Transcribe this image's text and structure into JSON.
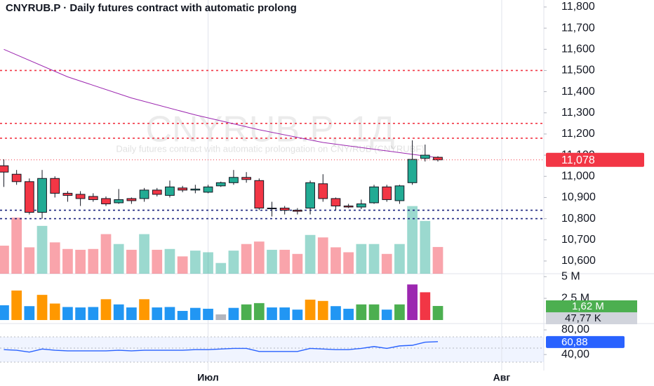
{
  "chart_data": {
    "type": "candlestick",
    "title": "CNYRUB.P · Daily futures contract with automatic prolong",
    "watermark": "CNYRUB.P, 1Д",
    "subtitle": "Daily futures contract with automatic prolongation on CNY/RUB (CNYRUBF)",
    "up_color": "#22ab94",
    "down_color": "#f23645",
    "open": [
      11050,
      11010,
      10975,
      10830,
      10990,
      10920,
      10915,
      10905,
      10895,
      10875,
      10895,
      10895,
      10935,
      10910,
      10945,
      10935,
      10925,
      10955,
      10970,
      10995,
      10980,
      10850,
      10850,
      10840,
      10850,
      10965,
      10895,
      10860,
      10855,
      10875,
      10950,
      10885,
      10970,
      11085,
      11090
    ],
    "high": [
      11080,
      11030,
      10990,
      11030,
      11000,
      10930,
      10930,
      10920,
      10905,
      10940,
      10900,
      10945,
      10945,
      10980,
      10955,
      10960,
      10960,
      10975,
      11030,
      11020,
      10990,
      10880,
      10860,
      10850,
      10980,
      11010,
      10900,
      10870,
      10890,
      10960,
      10960,
      10960,
      11170,
      11150,
      11095
    ],
    "low": [
      10950,
      10960,
      10820,
      10800,
      10900,
      10880,
      10860,
      10880,
      10860,
      10870,
      10870,
      10880,
      10905,
      10900,
      10925,
      10920,
      10920,
      10950,
      10960,
      10970,
      10840,
      10810,
      10820,
      10820,
      10820,
      10880,
      10840,
      10850,
      10845,
      10870,
      10880,
      10870,
      10960,
      11070,
      11070
    ],
    "close": [
      11020,
      10975,
      10830,
      10990,
      10920,
      10910,
      10895,
      10890,
      10870,
      10890,
      10885,
      10935,
      10915,
      10950,
      10935,
      10940,
      10950,
      10970,
      10995,
      10985,
      10850,
      10850,
      10840,
      10835,
      10970,
      10895,
      10860,
      10855,
      10870,
      10950,
      10890,
      10955,
      11080,
      11100,
      11078
    ],
    "last_price": {
      "value": 11078,
      "label": "11,078"
    },
    "ylim": [
      10540,
      11833
    ],
    "yticks": [
      {
        "value": 10600,
        "label": "10,600"
      },
      {
        "value": 10700,
        "label": "10,700"
      },
      {
        "value": 10800,
        "label": "10,800"
      },
      {
        "value": 10900,
        "label": "10,900"
      },
      {
        "value": 11000,
        "label": "11,000"
      },
      {
        "value": 11100,
        "label": "11,100"
      },
      {
        "value": 11200,
        "label": "11,200"
      },
      {
        "value": 11300,
        "label": "11,300"
      },
      {
        "value": 11400,
        "label": "11,400"
      },
      {
        "value": 11500,
        "label": "11,500"
      },
      {
        "value": 11600,
        "label": "11,600"
      },
      {
        "value": 11700,
        "label": "11,700"
      },
      {
        "value": 11800,
        "label": "11,800"
      }
    ],
    "xlim": [
      -0.3,
      42.3
    ],
    "xticks": [
      {
        "value": 16,
        "label": "Июл"
      },
      {
        "value": 39,
        "label": "Авг"
      }
    ],
    "ma": {
      "color": "#9c27b0",
      "x": [
        0,
        5,
        10,
        15,
        20,
        25,
        30,
        34
      ],
      "values": [
        11600,
        11470,
        11370,
        11290,
        11220,
        11160,
        11120,
        11088
      ]
    },
    "levels": [
      {
        "value": 11500,
        "color": "#f23645"
      },
      {
        "value": 11250,
        "color": "#f23645"
      },
      {
        "value": 11180,
        "color": "#f23645"
      },
      {
        "value": 10840,
        "color": "#1a237e"
      },
      {
        "value": 10800,
        "color": "#1a237e"
      }
    ],
    "volume": {
      "values": [
        1.7,
        3.4,
        1.6,
        2.9,
        1.9,
        1.5,
        1.45,
        1.5,
        2.4,
        1.8,
        1.45,
        2.4,
        1.45,
        1.5,
        1.05,
        1.4,
        1.3,
        0.65,
        1.4,
        1.8,
        1.95,
        1.45,
        1.45,
        1.2,
        2.35,
        2.2,
        1.6,
        1.3,
        1.8,
        1.8,
        1.2,
        1.8,
        4.1,
        3.2,
        1.62
      ],
      "colors": [
        "#2196f3",
        "#ff9800",
        "#2196f3",
        "#ff9800",
        "#ff9800",
        "#2196f3",
        "#2196f3",
        "#2196f3",
        "#ff9800",
        "#2196f3",
        "#2196f3",
        "#ff9800",
        "#2196f3",
        "#2196f3",
        "#2196f3",
        "#2196f3",
        "#2196f3",
        "#b2b5be",
        "#2196f3",
        "#4caf50",
        "#4caf50",
        "#2196f3",
        "#2196f3",
        "#2196f3",
        "#ff9800",
        "#ff9800",
        "#2196f3",
        "#2196f3",
        "#4caf50",
        "#4caf50",
        "#2196f3",
        "#4caf50",
        "#9c27b0",
        "#f23645",
        "#4caf50"
      ],
      "last_label": "1,62 M",
      "ma_label": "47,77 K",
      "ylim": [
        0,
        5.5
      ],
      "yticks": [
        {
          "value": 5,
          "label": "5 M"
        },
        {
          "value": 2.5,
          "label": "2,5 M"
        }
      ]
    },
    "rsi": {
      "values": [
        48,
        47,
        44,
        49,
        47,
        46,
        46,
        46,
        46,
        47,
        46,
        47,
        47,
        47,
        47,
        48,
        48,
        49,
        50,
        50,
        45,
        45,
        45,
        45,
        50,
        49,
        48,
        48,
        50,
        53,
        50,
        54,
        55,
        60,
        60.88
      ],
      "last_label": "60,88",
      "color": "#2962ff",
      "ylim": [
        22,
        88
      ],
      "yticks": [
        {
          "value": 80,
          "label": "80,00"
        },
        {
          "value": 40,
          "label": "40,00"
        }
      ]
    }
  }
}
